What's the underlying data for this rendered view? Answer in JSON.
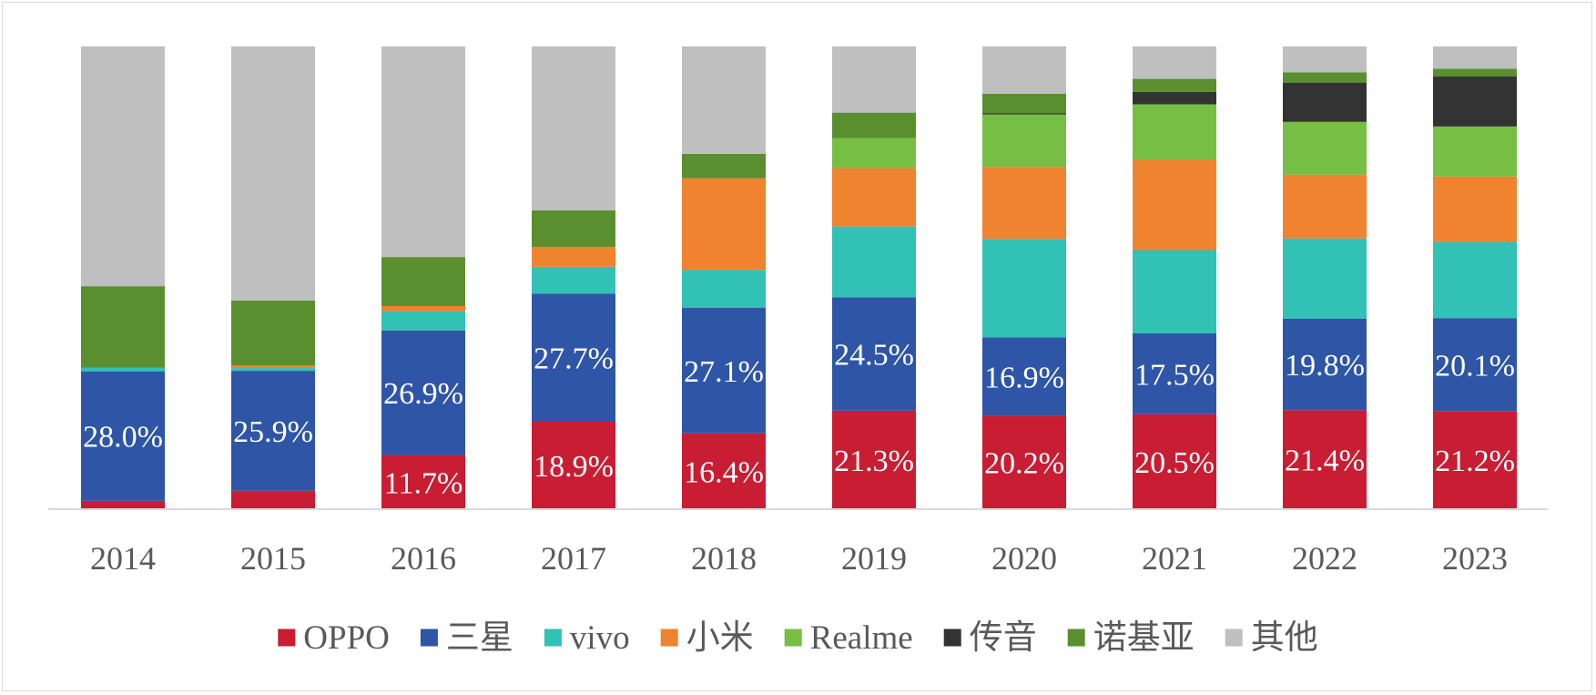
{
  "chart_data": {
    "type": "bar",
    "stacked": true,
    "percent_stacked": true,
    "title": "",
    "xlabel": "",
    "ylabel": "",
    "ylim": [
      0,
      100
    ],
    "grid": false,
    "legend_position": "bottom",
    "categories": [
      "2014",
      "2015",
      "2016",
      "2017",
      "2018",
      "2019",
      "2020",
      "2021",
      "2022",
      "2023"
    ],
    "series": [
      {
        "name": "OPPO",
        "color": "#c81d32",
        "values": [
          1.8,
          4.0,
          11.7,
          18.9,
          16.4,
          21.3,
          20.2,
          20.5,
          21.4,
          21.2
        ],
        "labels": [
          "",
          "",
          "11.7%",
          "18.9%",
          "16.4%",
          "21.3%",
          "20.2%",
          "20.5%",
          "21.4%",
          "21.2%"
        ]
      },
      {
        "name": "三星",
        "color": "#2e55a6",
        "values": [
          28.0,
          25.9,
          26.9,
          27.7,
          27.1,
          24.5,
          16.9,
          17.5,
          19.8,
          20.1
        ],
        "labels": [
          "28.0%",
          "25.9%",
          "26.9%",
          "27.7%",
          "27.1%",
          "24.5%",
          "16.9%",
          "17.5%",
          "19.8%",
          "20.1%"
        ]
      },
      {
        "name": "vivo",
        "color": "#31c1b5",
        "values": [
          0.8,
          0.6,
          4.2,
          5.8,
          8.2,
          15.3,
          21.3,
          18.0,
          17.3,
          16.5
        ],
        "labels": [
          "",
          "",
          "",
          "",
          "",
          "",
          "",
          "",
          "",
          ""
        ]
      },
      {
        "name": "小米",
        "color": "#f0832f",
        "values": [
          0,
          0.6,
          1.1,
          4.3,
          19.8,
          12.6,
          15.6,
          19.5,
          13.8,
          14.1
        ],
        "labels": [
          "",
          "",
          "",
          "",
          "",
          "",
          "",
          "",
          "",
          ""
        ]
      },
      {
        "name": "Realme",
        "color": "#76bf44",
        "values": [
          0,
          0,
          0,
          0,
          0,
          6.5,
          11.3,
          12.0,
          11.4,
          10.8
        ],
        "labels": [
          "",
          "",
          "",
          "",
          "",
          "",
          "",
          "",
          "",
          ""
        ]
      },
      {
        "name": "传音",
        "color": "#333333",
        "values": [
          0,
          0,
          0,
          0,
          0,
          0,
          0.3,
          2.7,
          8.5,
          10.8
        ],
        "labels": [
          "",
          "",
          "",
          "",
          "",
          "",
          "",
          "",
          "",
          ""
        ]
      },
      {
        "name": "诺基亚",
        "color": "#5a8f30",
        "values": [
          17.6,
          14.0,
          10.6,
          7.9,
          5.3,
          5.5,
          4.2,
          2.8,
          2.2,
          1.7
        ],
        "labels": [
          "",
          "",
          "",
          "",
          "",
          "",
          "",
          "",
          "",
          ""
        ]
      },
      {
        "name": "其他",
        "color": "#bfbfbf",
        "values": [
          51.8,
          54.9,
          45.5,
          35.4,
          23.2,
          14.3,
          10.2,
          7.0,
          5.6,
          4.8
        ],
        "labels": [
          "",
          "",
          "",
          "",
          "",
          "",
          "",
          "",
          "",
          ""
        ]
      }
    ]
  }
}
